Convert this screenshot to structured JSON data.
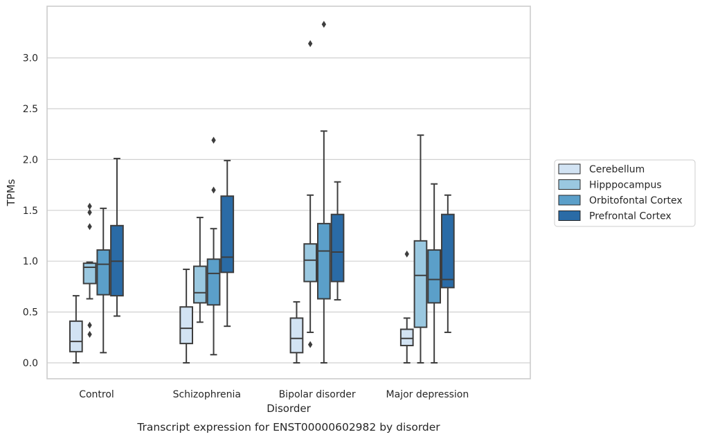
{
  "chart_data": {
    "type": "box",
    "caption": "Transcript expression for ENST00000602982 by disorder",
    "xlabel": "Disorder",
    "ylabel": "TPMs",
    "ylim": [
      -0.16,
      3.43
    ],
    "yticks": [
      "0.0",
      "0.5",
      "1.0",
      "1.5",
      "2.0",
      "2.5",
      "3.0"
    ],
    "grid": true,
    "legend_position": "right",
    "categories": [
      "Control",
      "Schizophrenia",
      "Bipolar disorder",
      "Major depression"
    ],
    "series": [
      {
        "name": "Cerebellum",
        "color": "#d2e3f3",
        "boxes": [
          {
            "whislo": 0.0,
            "q1": 0.11,
            "med": 0.21,
            "q3": 0.41,
            "whishi": 0.66,
            "fliers": []
          },
          {
            "whislo": 0.0,
            "q1": 0.19,
            "med": 0.34,
            "q3": 0.55,
            "whishi": 0.92,
            "fliers": []
          },
          {
            "whislo": 0.0,
            "q1": 0.1,
            "med": 0.24,
            "q3": 0.44,
            "whishi": 0.6,
            "fliers": []
          },
          {
            "whislo": 0.0,
            "q1": 0.17,
            "med": 0.24,
            "q3": 0.33,
            "whishi": 0.44,
            "fliers": [
              1.07
            ]
          }
        ]
      },
      {
        "name": "Hipppocampus",
        "color": "#9ac8e0",
        "boxes": [
          {
            "whislo": 0.63,
            "q1": 0.78,
            "med": 0.94,
            "q3": 0.98,
            "whishi": 0.99,
            "fliers": [
              0.28,
              0.37,
              1.34,
              1.48,
              1.54
            ]
          },
          {
            "whislo": 0.4,
            "q1": 0.59,
            "med": 0.69,
            "q3": 0.95,
            "whishi": 1.43,
            "fliers": []
          },
          {
            "whislo": 0.3,
            "q1": 0.8,
            "med": 1.01,
            "q3": 1.17,
            "whishi": 1.65,
            "fliers": [
              0.18,
              3.14
            ]
          },
          {
            "whislo": 0.0,
            "q1": 0.35,
            "med": 0.86,
            "q3": 1.2,
            "whishi": 2.24,
            "fliers": []
          }
        ]
      },
      {
        "name": "Orbitofontal Cortex",
        "color": "#5b9fc9",
        "boxes": [
          {
            "whislo": 0.1,
            "q1": 0.67,
            "med": 0.97,
            "q3": 1.11,
            "whishi": 1.52,
            "fliers": []
          },
          {
            "whislo": 0.08,
            "q1": 0.57,
            "med": 0.88,
            "q3": 1.02,
            "whishi": 1.32,
            "fliers": [
              1.7,
              2.19
            ]
          },
          {
            "whislo": 0.0,
            "q1": 0.63,
            "med": 1.1,
            "q3": 1.37,
            "whishi": 2.28,
            "fliers": [
              3.33
            ]
          },
          {
            "whislo": 0.0,
            "q1": 0.59,
            "med": 0.82,
            "q3": 1.11,
            "whishi": 1.76,
            "fliers": []
          }
        ]
      },
      {
        "name": "Prefrontal Cortex",
        "color": "#2a6ba6",
        "boxes": [
          {
            "whislo": 0.46,
            "q1": 0.66,
            "med": 1.0,
            "q3": 1.35,
            "whishi": 2.01,
            "fliers": []
          },
          {
            "whislo": 0.36,
            "q1": 0.89,
            "med": 1.04,
            "q3": 1.64,
            "whishi": 1.99,
            "fliers": []
          },
          {
            "whislo": 0.62,
            "q1": 0.8,
            "med": 1.09,
            "q3": 1.46,
            "whishi": 1.78,
            "fliers": []
          },
          {
            "whislo": 0.3,
            "q1": 0.74,
            "med": 0.82,
            "q3": 1.46,
            "whishi": 1.65,
            "fliers": []
          }
        ]
      }
    ]
  }
}
